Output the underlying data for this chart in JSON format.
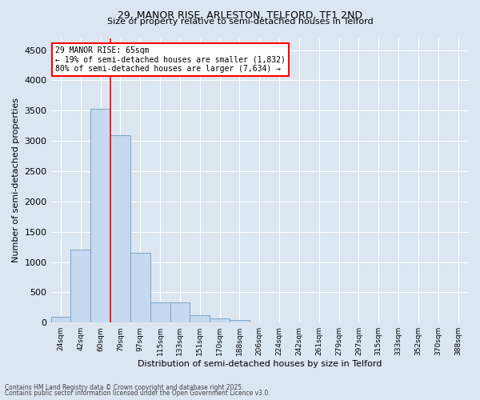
{
  "title_line1": "29, MANOR RISE, ARLESTON, TELFORD, TF1 2ND",
  "title_line2": "Size of property relative to semi-detached houses in Telford",
  "xlabel": "Distribution of semi-detached houses by size in Telford",
  "ylabel": "Number of semi-detached properties",
  "categories": [
    "24sqm",
    "42sqm",
    "60sqm",
    "79sqm",
    "97sqm",
    "115sqm",
    "133sqm",
    "151sqm",
    "170sqm",
    "188sqm",
    "206sqm",
    "224sqm",
    "242sqm",
    "261sqm",
    "279sqm",
    "297sqm",
    "315sqm",
    "333sqm",
    "352sqm",
    "370sqm",
    "388sqm"
  ],
  "values": [
    100,
    1200,
    3530,
    3100,
    1150,
    330,
    330,
    120,
    75,
    40,
    5,
    0,
    0,
    0,
    0,
    0,
    0,
    0,
    0,
    0,
    0
  ],
  "bar_color": "#c5d9f1",
  "bar_edgecolor": "#7BA7C7",
  "background_color": "#dce6f1",
  "property_label": "29 MANOR RISE: 65sqm",
  "pct_smaller": 19,
  "pct_larger": 80,
  "count_smaller": 1832,
  "count_larger": 7634,
  "vline_x": 2.5,
  "ylim": [
    0,
    4700
  ],
  "yticks": [
    0,
    500,
    1000,
    1500,
    2000,
    2500,
    3000,
    3500,
    4000,
    4500
  ],
  "bar_edgewidth": 0.7,
  "annotation_box_color": "white",
  "annotation_box_edgecolor": "red",
  "vline_color": "red",
  "grid_color": "white",
  "footer_line1": "Contains HM Land Registry data © Crown copyright and database right 2025.",
  "footer_line2": "Contains public sector information licensed under the Open Government Licence v3.0."
}
